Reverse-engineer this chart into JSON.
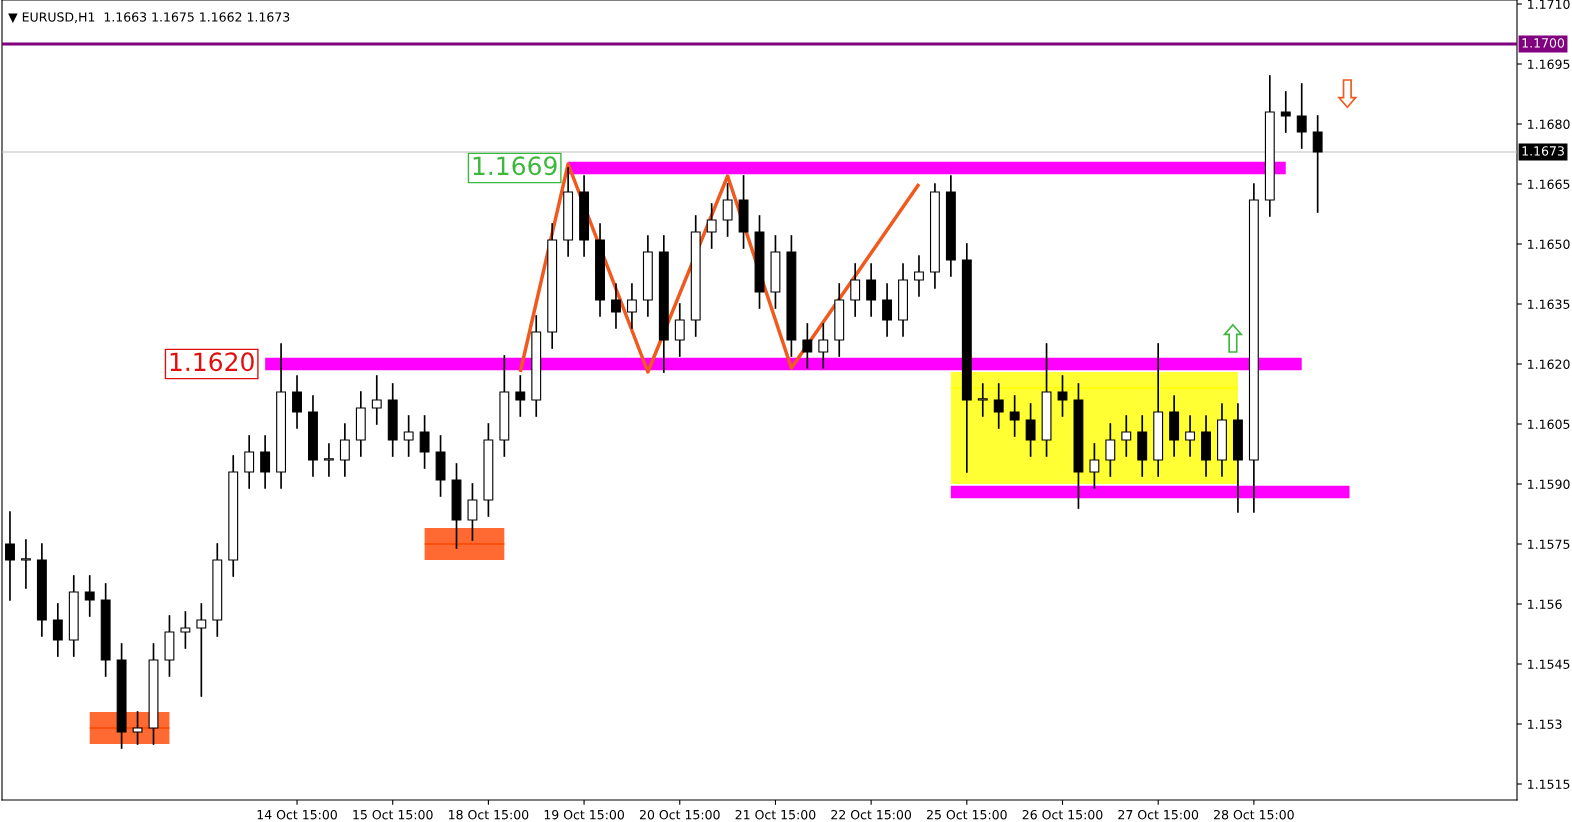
{
  "chart_data": {
    "type": "candlestick",
    "title": "▼ EURUSD,H1  1.1663 1.1675 1.1662 1.1673",
    "categories": [
      null,
      null,
      null,
      null,
      null,
      null,
      null,
      null,
      null,
      null,
      null,
      null,
      null,
      null,
      null,
      null,
      null,
      null,
      "14 Oct 15:00",
      null,
      null,
      null,
      null,
      null,
      "15 Oct 15:00",
      null,
      null,
      null,
      null,
      null,
      "18 Oct 15:00",
      null,
      null,
      null,
      null,
      null,
      "19 Oct 15:00",
      null,
      null,
      null,
      null,
      null,
      "20 Oct 15:00",
      null,
      null,
      null,
      null,
      null,
      "21 Oct 15:00",
      null,
      null,
      null,
      null,
      null,
      "22 Oct 15:00",
      null,
      null,
      null,
      null,
      null,
      "25 Oct 15:00",
      null,
      null,
      null,
      null,
      null,
      "26 Oct 15:00",
      null,
      null,
      null,
      null,
      null,
      "27 Oct 15:00",
      null,
      null,
      null,
      null,
      null,
      "28 Oct 15:00",
      null,
      null,
      null,
      null,
      null,
      null,
      null,
      null,
      null,
      null,
      null,
      null,
      null,
      null,
      null,
      null
    ],
    "ohlc": [
      [
        1.1575,
        1.1583,
        1.1561,
        1.1571
      ],
      [
        1.1571,
        1.1576,
        1.1564,
        1.1571
      ],
      [
        1.1571,
        1.1575,
        1.1552,
        1.1556
      ],
      [
        1.1556,
        1.156,
        1.1547,
        1.1551
      ],
      [
        1.1551,
        1.1567,
        1.1547,
        1.1563
      ],
      [
        1.1563,
        1.1567,
        1.1557,
        1.1561
      ],
      [
        1.1561,
        1.1565,
        1.1542,
        1.1546
      ],
      [
        1.1546,
        1.155,
        1.1524,
        1.1528
      ],
      [
        1.1528,
        1.1533,
        1.1525,
        1.1529
      ],
      [
        1.1529,
        1.155,
        1.1525,
        1.1546
      ],
      [
        1.1546,
        1.1557,
        1.1542,
        1.1553
      ],
      [
        1.1553,
        1.1558,
        1.1549,
        1.1554
      ],
      [
        1.1554,
        1.156,
        1.1537,
        1.1556
      ],
      [
        1.1556,
        1.1575,
        1.1552,
        1.1571
      ],
      [
        1.1571,
        1.1597,
        1.1567,
        1.1593
      ],
      [
        1.1593,
        1.1602,
        1.1589,
        1.1598
      ],
      [
        1.1598,
        1.1602,
        1.1589,
        1.1593
      ],
      [
        1.1593,
        1.1625,
        1.1589,
        1.1613
      ],
      [
        1.1613,
        1.1617,
        1.1604,
        1.1608
      ],
      [
        1.1608,
        1.1612,
        1.1592,
        1.1596
      ],
      [
        1.1596,
        1.16,
        1.1592,
        1.1596
      ],
      [
        1.1596,
        1.1605,
        1.1592,
        1.1601
      ],
      [
        1.1601,
        1.1613,
        1.1597,
        1.1609
      ],
      [
        1.1609,
        1.1617,
        1.1605,
        1.1611
      ],
      [
        1.1611,
        1.1615,
        1.1597,
        1.1601
      ],
      [
        1.1601,
        1.1607,
        1.1597,
        1.1603
      ],
      [
        1.1603,
        1.1607,
        1.1594,
        1.1598
      ],
      [
        1.1598,
        1.1602,
        1.1587,
        1.1591
      ],
      [
        1.1591,
        1.1595,
        1.1574,
        1.1581
      ],
      [
        1.1581,
        1.159,
        1.1576,
        1.1586
      ],
      [
        1.1586,
        1.1605,
        1.1582,
        1.1601
      ],
      [
        1.1601,
        1.1622,
        1.1597,
        1.1613
      ],
      [
        1.1613,
        1.1617,
        1.1607,
        1.1611
      ],
      [
        1.1611,
        1.1632,
        1.1607,
        1.1628
      ],
      [
        1.1628,
        1.1655,
        1.1624,
        1.1651
      ],
      [
        1.1651,
        1.1669,
        1.1647,
        1.1663
      ],
      [
        1.1663,
        1.1667,
        1.1647,
        1.1651
      ],
      [
        1.1651,
        1.1655,
        1.1632,
        1.1636
      ],
      [
        1.1636,
        1.164,
        1.1629,
        1.1633
      ],
      [
        1.1633,
        1.164,
        1.1629,
        1.1636
      ],
      [
        1.1636,
        1.1652,
        1.1632,
        1.1648
      ],
      [
        1.1648,
        1.1652,
        1.1618,
        1.1626
      ],
      [
        1.1626,
        1.1635,
        1.1622,
        1.1631
      ],
      [
        1.1631,
        1.1657,
        1.1627,
        1.1653
      ],
      [
        1.1653,
        1.166,
        1.1649,
        1.1656
      ],
      [
        1.1656,
        1.1665,
        1.1652,
        1.1661
      ],
      [
        1.1661,
        1.1667,
        1.1649,
        1.1653
      ],
      [
        1.1653,
        1.1657,
        1.1634,
        1.1638
      ],
      [
        1.1638,
        1.1652,
        1.1634,
        1.1648
      ],
      [
        1.1648,
        1.1652,
        1.1622,
        1.1626
      ],
      [
        1.1626,
        1.163,
        1.1619,
        1.1623
      ],
      [
        1.1623,
        1.163,
        1.1619,
        1.1626
      ],
      [
        1.1626,
        1.164,
        1.1622,
        1.1636
      ],
      [
        1.1636,
        1.1645,
        1.1632,
        1.1641
      ],
      [
        1.1641,
        1.1645,
        1.1632,
        1.1636
      ],
      [
        1.1636,
        1.164,
        1.1627,
        1.1631
      ],
      [
        1.1631,
        1.1645,
        1.1627,
        1.1641
      ],
      [
        1.1641,
        1.1647,
        1.1637,
        1.1643
      ],
      [
        1.1643,
        1.1665,
        1.1639,
        1.1663
      ],
      [
        1.1663,
        1.1667,
        1.1642,
        1.1646
      ],
      [
        1.1646,
        1.165,
        1.1593,
        1.1611
      ],
      [
        1.1611,
        1.1615,
        1.1607,
        1.1611
      ],
      [
        1.1611,
        1.1615,
        1.1604,
        1.1608
      ],
      [
        1.1608,
        1.1612,
        1.1602,
        1.1606
      ],
      [
        1.1606,
        1.161,
        1.1597,
        1.1601
      ],
      [
        1.1601,
        1.1625,
        1.1597,
        1.1613
      ],
      [
        1.1613,
        1.1617,
        1.1607,
        1.1611
      ],
      [
        1.1611,
        1.1615,
        1.1584,
        1.1593
      ],
      [
        1.1593,
        1.16,
        1.1589,
        1.1596
      ],
      [
        1.1596,
        1.1605,
        1.1592,
        1.1601
      ],
      [
        1.1601,
        1.1607,
        1.1597,
        1.1603
      ],
      [
        1.1603,
        1.1607,
        1.1592,
        1.1596
      ],
      [
        1.1596,
        1.1625,
        1.1592,
        1.1608
      ],
      [
        1.1608,
        1.1612,
        1.1597,
        1.1601
      ],
      [
        1.1601,
        1.1607,
        1.1597,
        1.1603
      ],
      [
        1.1603,
        1.1607,
        1.1592,
        1.1596
      ],
      [
        1.1596,
        1.161,
        1.1592,
        1.1606
      ],
      [
        1.1606,
        1.161,
        1.1583,
        1.1596
      ],
      [
        1.1596,
        1.1665,
        1.1583,
        1.1661
      ],
      [
        1.1661,
        1.1692,
        1.1657,
        1.1683
      ],
      [
        1.1683,
        1.1688,
        1.1678,
        1.1682
      ],
      [
        1.1682,
        1.169,
        1.1674,
        1.1678
      ],
      [
        1.1678,
        1.1682,
        1.1658,
        1.1673
      ],
      null,
      null,
      null,
      null,
      null,
      null,
      null,
      null,
      null,
      null,
      null,
      null
    ],
    "series": [
      {
        "type": "line",
        "color": "#ffff00",
        "values": [
          null,
          null,
          null,
          null,
          null,
          null,
          null,
          null,
          null,
          null,
          null,
          null,
          null,
          null,
          null,
          null,
          null,
          null,
          null,
          null,
          null,
          null,
          null,
          null,
          null,
          null,
          null,
          null,
          null,
          null,
          null,
          null,
          null,
          null,
          null,
          null,
          null,
          null,
          null,
          null,
          null,
          null,
          null,
          null,
          null,
          null,
          null,
          null,
          null,
          null,
          null,
          null,
          null,
          null,
          null,
          null,
          null,
          null,
          null,
          1.1614,
          null,
          null,
          null,
          null,
          null,
          null,
          null,
          null,
          null,
          null,
          null,
          null,
          null,
          null,
          null,
          null,
          null,
          1.1614,
          null,
          null,
          null,
          null,
          null,
          null,
          null,
          null,
          null,
          null,
          null,
          null,
          null,
          null,
          null,
          null,
          null
        ],
        "lower": [
          null,
          null,
          null,
          null,
          null,
          null,
          null,
          null,
          null,
          null,
          null,
          null,
          null,
          null,
          null,
          null,
          null,
          null,
          null,
          null,
          null,
          null,
          null,
          null,
          null,
          null,
          null,
          null,
          null,
          null,
          null,
          null,
          null,
          null,
          null,
          null,
          null,
          null,
          null,
          null,
          null,
          null,
          null,
          null,
          null,
          null,
          null,
          null,
          null,
          null,
          null,
          null,
          null,
          null,
          null,
          null,
          null,
          null,
          null,
          1.159,
          null,
          null,
          null,
          null,
          null,
          null,
          null,
          null,
          null,
          null,
          null,
          null,
          null,
          null,
          null,
          null,
          null,
          1.159,
          null,
          null,
          null,
          null,
          null,
          null,
          null,
          null,
          null,
          null,
          null,
          null,
          null,
          null,
          null,
          null,
          null
        ],
        "upper": [
          null,
          null,
          null,
          null,
          null,
          null,
          null,
          null,
          null,
          null,
          null,
          null,
          null,
          null,
          null,
          null,
          null,
          null,
          null,
          null,
          null,
          null,
          null,
          null,
          null,
          null,
          null,
          null,
          null,
          null,
          null,
          null,
          null,
          null,
          null,
          null,
          null,
          null,
          null,
          null,
          null,
          null,
          null,
          null,
          null,
          null,
          null,
          null,
          null,
          null,
          null,
          null,
          null,
          null,
          null,
          null,
          null,
          null,
          null,
          1.1618,
          null,
          null,
          null,
          null,
          null,
          null,
          null,
          null,
          null,
          null,
          null,
          null,
          null,
          null,
          null,
          null,
          null,
          1.1618,
          null,
          null,
          null,
          null,
          null,
          null,
          null,
          null,
          null,
          null,
          null,
          null,
          null,
          null,
          null,
          null,
          null
        ]
      },
      {
        "type": "line",
        "color": "#ff00ff",
        "name": "1.1669",
        "values": [
          null,
          null,
          null,
          null,
          null,
          null,
          null,
          null,
          null,
          null,
          null,
          null,
          null,
          null,
          null,
          null,
          null,
          null,
          null,
          null,
          null,
          null,
          null,
          null,
          null,
          null,
          null,
          null,
          null,
          null,
          null,
          null,
          null,
          null,
          null,
          1.1669,
          null,
          null,
          null,
          null,
          null,
          null,
          null,
          null,
          null,
          null,
          null,
          null,
          null,
          null,
          null,
          null,
          null,
          null,
          null,
          null,
          null,
          null,
          null,
          null,
          null,
          null,
          null,
          null,
          null,
          null,
          null,
          null,
          null,
          null,
          null,
          null,
          null,
          null,
          null,
          null,
          null,
          null,
          null,
          null,
          1.1669,
          null,
          null,
          null,
          null,
          null,
          null,
          null,
          null,
          null,
          null,
          null,
          null,
          null,
          null
        ]
      },
      {
        "type": "line",
        "color": "#ff00ff",
        "name": "1.1620",
        "values": [
          null,
          null,
          null,
          null,
          null,
          null,
          null,
          null,
          null,
          null,
          null,
          null,
          null,
          null,
          null,
          null,
          1.162,
          null,
          null,
          null,
          null,
          null,
          null,
          null,
          null,
          null,
          null,
          null,
          null,
          null,
          null,
          null,
          null,
          null,
          null,
          null,
          null,
          null,
          null,
          null,
          null,
          null,
          null,
          null,
          null,
          null,
          null,
          null,
          null,
          null,
          null,
          null,
          null,
          null,
          null,
          null,
          null,
          null,
          null,
          null,
          null,
          null,
          null,
          null,
          null,
          null,
          null,
          null,
          null,
          null,
          null,
          null,
          null,
          null,
          null,
          null,
          null,
          null,
          null,
          null,
          null,
          1.162,
          null,
          null,
          null,
          null,
          null,
          null,
          null,
          null,
          null,
          null,
          null,
          null,
          null
        ]
      },
      {
        "type": "line",
        "color": "#ff00ff",
        "values": [
          null,
          null,
          null,
          null,
          null,
          null,
          null,
          null,
          null,
          null,
          null,
          null,
          null,
          null,
          null,
          null,
          null,
          null,
          null,
          null,
          null,
          null,
          null,
          null,
          null,
          null,
          null,
          null,
          null,
          null,
          null,
          null,
          null,
          null,
          null,
          null,
          null,
          null,
          null,
          null,
          null,
          null,
          null,
          null,
          null,
          null,
          null,
          null,
          null,
          null,
          null,
          null,
          null,
          null,
          null,
          null,
          null,
          null,
          null,
          1.1588,
          null,
          null,
          null,
          null,
          null,
          null,
          null,
          null,
          null,
          null,
          null,
          null,
          null,
          null,
          null,
          null,
          null,
          null,
          null,
          null,
          null,
          null,
          null,
          null,
          1.1588,
          null,
          null,
          null,
          null,
          null,
          null,
          null,
          null,
          null,
          null
        ]
      },
      {
        "type": "line",
        "color": "#ff4500",
        "values": [
          null,
          null,
          null,
          null,
          null,
          1.1529,
          null,
          null,
          null,
          null,
          1.1529,
          null,
          null,
          null,
          null,
          null,
          null,
          null,
          null,
          null,
          null,
          null,
          null,
          null,
          null,
          null,
          null,
          null,
          null,
          null,
          null,
          null,
          null,
          null,
          null,
          null,
          null,
          null,
          null,
          null,
          null,
          null,
          null,
          null,
          null,
          null,
          null,
          null,
          null,
          null,
          null,
          null,
          null,
          null,
          null,
          null,
          null,
          null,
          null,
          null,
          null,
          null,
          null,
          null,
          null,
          null,
          null,
          null,
          null,
          null,
          null,
          null,
          null,
          null,
          null,
          null,
          null,
          null,
          null,
          null,
          null,
          null,
          null,
          null,
          null,
          null,
          null,
          null,
          null,
          null,
          null,
          null,
          null,
          null,
          null
        ],
        "lower": [
          null,
          null,
          null,
          null,
          null,
          1.1525,
          null,
          null,
          null,
          null,
          1.1525,
          null,
          null,
          null,
          null,
          null,
          null,
          null,
          null,
          null,
          null,
          null,
          null,
          null,
          null,
          null,
          null,
          null,
          null,
          null,
          null,
          null,
          null,
          null,
          null,
          null,
          null,
          null,
          null,
          null,
          null,
          null,
          null,
          null,
          null,
          null,
          null,
          null,
          null,
          null,
          null,
          null,
          null,
          null,
          null,
          null,
          null,
          null,
          null,
          null,
          null,
          null,
          null,
          null,
          null,
          null,
          null,
          null,
          null,
          null,
          null,
          null,
          null,
          null,
          null,
          null,
          null,
          null,
          null,
          null,
          null,
          null,
          null,
          null,
          null,
          null,
          null,
          null,
          null,
          null,
          null,
          null,
          null,
          null,
          null
        ],
        "upper": [
          null,
          null,
          null,
          null,
          null,
          1.1533,
          null,
          null,
          null,
          null,
          1.1533,
          null,
          null,
          null,
          null,
          null,
          null,
          null,
          null,
          null,
          null,
          null,
          null,
          null,
          null,
          null,
          null,
          null,
          null,
          null,
          null,
          null,
          null,
          null,
          null,
          null,
          null,
          null,
          null,
          null,
          null,
          null,
          null,
          null,
          null,
          null,
          null,
          null,
          null,
          null,
          null,
          null,
          null,
          null,
          null,
          null,
          null,
          null,
          null,
          null,
          null,
          null,
          null,
          null,
          null,
          null,
          null,
          null,
          null,
          null,
          null,
          null,
          null,
          null,
          null,
          null,
          null,
          null,
          null,
          null,
          null,
          null,
          null,
          null,
          null,
          null,
          null,
          null,
          null,
          null,
          null,
          null,
          null,
          null,
          null
        ]
      },
      {
        "type": "line",
        "color": "#ff4500",
        "values": [
          null,
          null,
          null,
          null,
          null,
          null,
          null,
          null,
          null,
          null,
          null,
          null,
          null,
          null,
          null,
          null,
          null,
          null,
          null,
          null,
          null,
          null,
          null,
          null,
          null,
          null,
          1.1575,
          null,
          null,
          null,
          null,
          1.1575,
          null,
          null,
          null,
          null,
          null,
          null,
          null,
          null,
          null,
          null,
          null,
          null,
          null,
          null,
          null,
          null,
          null,
          null,
          null,
          null,
          null,
          null,
          null,
          null,
          null,
          null,
          null,
          null,
          null,
          null,
          null,
          null,
          null,
          null,
          null,
          null,
          null,
          null,
          null,
          null,
          null,
          null,
          null,
          null,
          null,
          null,
          null,
          null,
          null,
          null,
          null,
          null,
          null,
          null,
          null,
          null,
          null,
          null,
          null,
          null,
          null,
          null,
          null
        ],
        "lower": [
          null,
          null,
          null,
          null,
          null,
          null,
          null,
          null,
          null,
          null,
          null,
          null,
          null,
          null,
          null,
          null,
          null,
          null,
          null,
          null,
          null,
          null,
          null,
          null,
          null,
          null,
          1.1571,
          null,
          null,
          null,
          null,
          1.1571,
          null,
          null,
          null,
          null,
          null,
          null,
          null,
          null,
          null,
          null,
          null,
          null,
          null,
          null,
          null,
          null,
          null,
          null,
          null,
          null,
          null,
          null,
          null,
          null,
          null,
          null,
          null,
          null,
          null,
          null,
          null,
          null,
          null,
          null,
          null,
          null,
          null,
          null,
          null,
          null,
          null,
          null,
          null,
          null,
          null,
          null,
          null,
          null,
          null,
          null,
          null,
          null,
          null,
          null,
          null,
          null,
          null,
          null,
          null,
          null,
          null,
          null,
          null
        ],
        "upper": [
          null,
          null,
          null,
          null,
          null,
          null,
          null,
          null,
          null,
          null,
          null,
          null,
          null,
          null,
          null,
          null,
          null,
          null,
          null,
          null,
          null,
          null,
          null,
          null,
          null,
          null,
          1.1579,
          null,
          null,
          null,
          null,
          1.1579,
          null,
          null,
          null,
          null,
          null,
          null,
          null,
          null,
          null,
          null,
          null,
          null,
          null,
          null,
          null,
          null,
          null,
          null,
          null,
          null,
          null,
          null,
          null,
          null,
          null,
          null,
          null,
          null,
          null,
          null,
          null,
          null,
          null,
          null,
          null,
          null,
          null,
          null,
          null,
          null,
          null,
          null,
          null,
          null,
          null,
          null,
          null,
          null,
          null,
          null,
          null,
          null,
          null,
          null,
          null,
          null,
          null,
          null,
          null,
          null,
          null,
          null,
          null
        ]
      },
      {
        "type": "line",
        "color": "#f05a1e",
        "values": [
          null,
          null,
          null,
          null,
          null,
          null,
          null,
          null,
          null,
          null,
          null,
          null,
          null,
          null,
          null,
          null,
          null,
          null,
          null,
          null,
          null,
          null,
          null,
          null,
          null,
          null,
          null,
          null,
          null,
          null,
          null,
          null,
          1.1618,
          null,
          null,
          1.167,
          null,
          null,
          null,
          null,
          1.1618,
          null,
          null,
          null,
          null,
          1.1667,
          null,
          null,
          null,
          1.1619,
          null,
          null,
          null,
          null,
          null,
          null,
          null,
          1.1665,
          null,
          null,
          null,
          null,
          null,
          null,
          null,
          null,
          null,
          null,
          null,
          null,
          null,
          null,
          null,
          null,
          null,
          null,
          null,
          null,
          null,
          null,
          null,
          null,
          null,
          null,
          null,
          null,
          null,
          null,
          null,
          null,
          null,
          null,
          null,
          null,
          null
        ]
      }
    ],
    "ref_lines": [
      {
        "axis": "y",
        "value": 1.17,
        "label": "1.1700",
        "color": "#800080"
      },
      {
        "axis": "y",
        "value": 1.1673,
        "label": "1.1673",
        "color": "#c0c0c0"
      }
    ],
    "ylim": [
      1.1511,
      1.1711
    ],
    "yticks": [
      1.1515,
      1.153,
      1.1545,
      1.156,
      1.1575,
      {
        "value": 1.159,
        "label": "1.1590"
      },
      1.1605,
      {
        "value": 1.162,
        "label": "1.1620"
      },
      1.1635,
      {
        "value": 1.165,
        "label": "1.1650"
      },
      1.1665,
      {
        "value": 1.168,
        "label": "1.1680"
      },
      1.1695,
      {
        "value": 1.171,
        "label": "1.1710"
      }
    ],
    "grid": false
  }
}
